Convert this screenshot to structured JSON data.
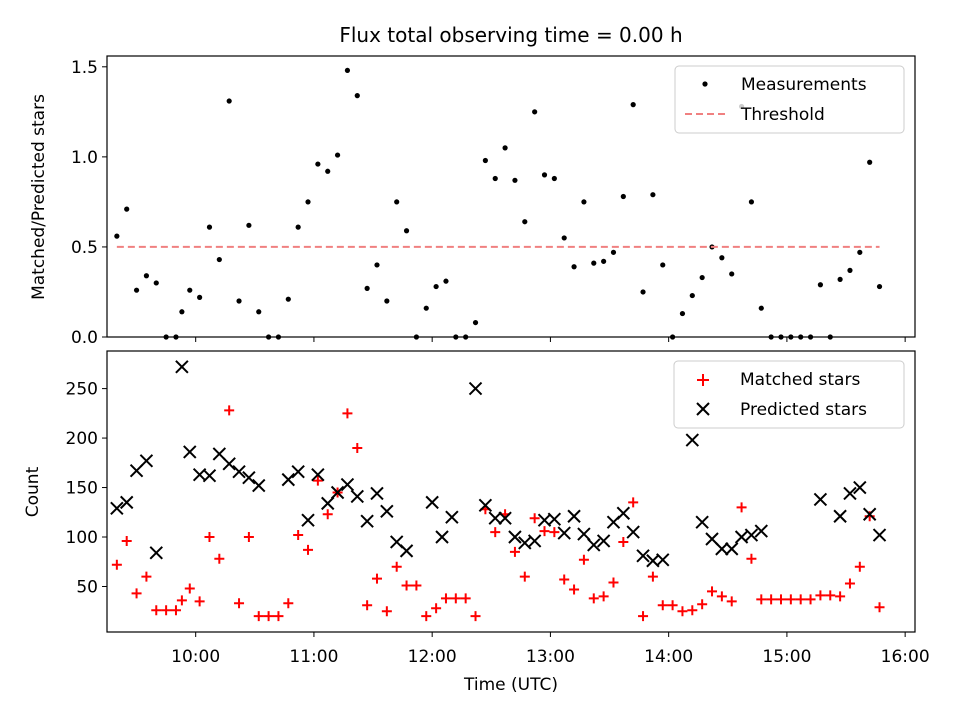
{
  "chart_data": {
    "title": "Flux total observing time = 0.00 h",
    "xlabel": "Time (UTC)",
    "x_ticks": [
      "10:00",
      "11:00",
      "12:00",
      "13:00",
      "14:00",
      "15:00",
      "16:00"
    ],
    "x_range": [
      "09:15",
      "16:05"
    ],
    "panels": [
      {
        "type": "scatter",
        "ylabel": "Matched/Predicted stars",
        "ylim": [
          0,
          1.56
        ],
        "yticks": [
          "0.0",
          "0.5",
          "1.0",
          "1.5"
        ],
        "legend_position": "top-right",
        "series": [
          {
            "name": "Measurements",
            "marker": "dot",
            "color": "#000000",
            "points": [
              [
                "09:20",
                0.56
              ],
              [
                "09:25",
                0.71
              ],
              [
                "09:30",
                0.26
              ],
              [
                "09:35",
                0.34
              ],
              [
                "09:40",
                0.3
              ],
              [
                "09:45",
                0.0
              ],
              [
                "09:50",
                0.0
              ],
              [
                "09:53",
                0.14
              ],
              [
                "09:57",
                0.26
              ],
              [
                "10:02",
                0.22
              ],
              [
                "10:07",
                0.61
              ],
              [
                "10:12",
                0.43
              ],
              [
                "10:17",
                1.31
              ],
              [
                "10:22",
                0.2
              ],
              [
                "10:27",
                0.62
              ],
              [
                "10:32",
                0.14
              ],
              [
                "10:37",
                0.0
              ],
              [
                "10:42",
                0.0
              ],
              [
                "10:47",
                0.21
              ],
              [
                "10:52",
                0.61
              ],
              [
                "10:57",
                0.75
              ],
              [
                "11:02",
                0.96
              ],
              [
                "11:07",
                0.92
              ],
              [
                "11:12",
                1.01
              ],
              [
                "11:17",
                1.48
              ],
              [
                "11:22",
                1.34
              ],
              [
                "11:27",
                0.27
              ],
              [
                "11:32",
                0.4
              ],
              [
                "11:37",
                0.2
              ],
              [
                "11:42",
                0.75
              ],
              [
                "11:47",
                0.59
              ],
              [
                "11:52",
                0.0
              ],
              [
                "11:57",
                0.16
              ],
              [
                "12:02",
                0.28
              ],
              [
                "12:07",
                0.31
              ],
              [
                "12:12",
                0.0
              ],
              [
                "12:17",
                0.0
              ],
              [
                "12:22",
                0.08
              ],
              [
                "12:27",
                0.98
              ],
              [
                "12:32",
                0.88
              ],
              [
                "12:37",
                1.05
              ],
              [
                "12:42",
                0.87
              ],
              [
                "12:47",
                0.64
              ],
              [
                "12:52",
                1.25
              ],
              [
                "12:57",
                0.9
              ],
              [
                "13:02",
                0.88
              ],
              [
                "13:07",
                0.55
              ],
              [
                "13:12",
                0.39
              ],
              [
                "13:17",
                0.75
              ],
              [
                "13:22",
                0.41
              ],
              [
                "13:27",
                0.42
              ],
              [
                "13:32",
                0.47
              ],
              [
                "13:37",
                0.78
              ],
              [
                "13:42",
                1.29
              ],
              [
                "13:47",
                0.25
              ],
              [
                "13:52",
                0.79
              ],
              [
                "13:57",
                0.4
              ],
              [
                "14:02",
                0.0
              ],
              [
                "14:07",
                0.13
              ],
              [
                "14:12",
                0.23
              ],
              [
                "14:17",
                0.33
              ],
              [
                "14:22",
                0.5
              ],
              [
                "14:27",
                0.44
              ],
              [
                "14:32",
                0.35
              ],
              [
                "14:37",
                1.28
              ],
              [
                "14:42",
                0.75
              ],
              [
                "14:47",
                0.16
              ],
              [
                "14:52",
                0.0
              ],
              [
                "14:57",
                0.0
              ],
              [
                "15:02",
                0.0
              ],
              [
                "15:07",
                0.0
              ],
              [
                "15:12",
                0.0
              ],
              [
                "15:17",
                0.29
              ],
              [
                "15:22",
                0.0
              ],
              [
                "15:27",
                0.32
              ],
              [
                "15:32",
                0.37
              ],
              [
                "15:37",
                0.47
              ],
              [
                "15:42",
                0.97
              ],
              [
                "15:47",
                0.28
              ]
            ]
          },
          {
            "name": "Threshold",
            "marker": "dashed-line",
            "color": "#f08080",
            "points": [
              [
                "09:20",
                0.5
              ],
              [
                "15:47",
                0.5
              ]
            ]
          }
        ]
      },
      {
        "type": "scatter",
        "ylabel": "Count",
        "ylim": [
          4,
          288
        ],
        "yticks": [
          "50",
          "100",
          "150",
          "200",
          "250"
        ],
        "legend_position": "top-right",
        "series": [
          {
            "name": "Matched stars",
            "marker": "plus",
            "color": "#ff0000",
            "points": [
              [
                "09:20",
                72
              ],
              [
                "09:25",
                96
              ],
              [
                "09:30",
                43
              ],
              [
                "09:35",
                60
              ],
              [
                "09:40",
                26
              ],
              [
                "09:45",
                26
              ],
              [
                "09:50",
                26
              ],
              [
                "09:53",
                36
              ],
              [
                "09:57",
                48
              ],
              [
                "10:02",
                35
              ],
              [
                "10:07",
                100
              ],
              [
                "10:12",
                78
              ],
              [
                "10:17",
                228
              ],
              [
                "10:22",
                33
              ],
              [
                "10:27",
                100
              ],
              [
                "10:32",
                20
              ],
              [
                "10:37",
                20
              ],
              [
                "10:42",
                20
              ],
              [
                "10:47",
                33
              ],
              [
                "10:52",
                102
              ],
              [
                "10:57",
                87
              ],
              [
                "11:02",
                157
              ],
              [
                "11:07",
                123
              ],
              [
                "11:12",
                145
              ],
              [
                "11:17",
                225
              ],
              [
                "11:22",
                190
              ],
              [
                "11:27",
                31
              ],
              [
                "11:32",
                58
              ],
              [
                "11:37",
                25
              ],
              [
                "11:42",
                70
              ],
              [
                "11:47",
                51
              ],
              [
                "11:52",
                51
              ],
              [
                "11:57",
                20
              ],
              [
                "12:02",
                28
              ],
              [
                "12:07",
                38
              ],
              [
                "12:12",
                38
              ],
              [
                "12:17",
                38
              ],
              [
                "12:22",
                20
              ],
              [
                "12:27",
                128
              ],
              [
                "12:32",
                105
              ],
              [
                "12:37",
                123
              ],
              [
                "12:42",
                85
              ],
              [
                "12:47",
                60
              ],
              [
                "12:52",
                119
              ],
              [
                "12:57",
                106
              ],
              [
                "13:02",
                105
              ],
              [
                "13:07",
                57
              ],
              [
                "13:12",
                47
              ],
              [
                "13:17",
                77
              ],
              [
                "13:22",
                38
              ],
              [
                "13:27",
                40
              ],
              [
                "13:32",
                54
              ],
              [
                "13:37",
                95
              ],
              [
                "13:42",
                135
              ],
              [
                "13:47",
                20
              ],
              [
                "13:52",
                60
              ],
              [
                "13:57",
                31
              ],
              [
                "14:02",
                31
              ],
              [
                "14:07",
                25
              ],
              [
                "14:12",
                26
              ],
              [
                "14:17",
                32
              ],
              [
                "14:22",
                45
              ],
              [
                "14:27",
                40
              ],
              [
                "14:32",
                35
              ],
              [
                "14:37",
                130
              ],
              [
                "14:42",
                78
              ],
              [
                "14:47",
                37
              ],
              [
                "14:52",
                37
              ],
              [
                "14:57",
                37
              ],
              [
                "15:02",
                37
              ],
              [
                "15:07",
                37
              ],
              [
                "15:12",
                37
              ],
              [
                "15:17",
                41
              ],
              [
                "15:22",
                41
              ],
              [
                "15:27",
                40
              ],
              [
                "15:32",
                53
              ],
              [
                "15:37",
                70
              ],
              [
                "15:42",
                121
              ],
              [
                "15:47",
                29
              ]
            ]
          },
          {
            "name": "Predicted stars",
            "marker": "x",
            "color": "#000000",
            "points": [
              [
                "09:20",
                129
              ],
              [
                "09:25",
                135
              ],
              [
                "09:30",
                167
              ],
              [
                "09:35",
                177
              ],
              [
                "09:40",
                84
              ],
              [
                "09:53",
                272
              ],
              [
                "09:57",
                186
              ],
              [
                "10:02",
                163
              ],
              [
                "10:07",
                162
              ],
              [
                "10:12",
                184
              ],
              [
                "10:17",
                174
              ],
              [
                "10:22",
                166
              ],
              [
                "10:27",
                160
              ],
              [
                "10:32",
                152
              ],
              [
                "10:47",
                158
              ],
              [
                "10:52",
                166
              ],
              [
                "10:57",
                117
              ],
              [
                "11:02",
                163
              ],
              [
                "11:07",
                134
              ],
              [
                "11:12",
                145
              ],
              [
                "11:17",
                153
              ],
              [
                "11:22",
                141
              ],
              [
                "11:27",
                116
              ],
              [
                "11:32",
                144
              ],
              [
                "11:37",
                126
              ],
              [
                "11:42",
                95
              ],
              [
                "11:47",
                86
              ],
              [
                "12:00",
                135
              ],
              [
                "12:05",
                100
              ],
              [
                "12:10",
                120
              ],
              [
                "12:22",
                250
              ],
              [
                "12:27",
                132
              ],
              [
                "12:32",
                119
              ],
              [
                "12:37",
                119
              ],
              [
                "12:42",
                100
              ],
              [
                "12:47",
                94
              ],
              [
                "12:52",
                96
              ],
              [
                "12:57",
                117
              ],
              [
                "13:02",
                118
              ],
              [
                "13:07",
                104
              ],
              [
                "13:12",
                121
              ],
              [
                "13:17",
                103
              ],
              [
                "13:22",
                92
              ],
              [
                "13:27",
                96
              ],
              [
                "13:32",
                115
              ],
              [
                "13:37",
                124
              ],
              [
                "13:42",
                105
              ],
              [
                "13:47",
                81
              ],
              [
                "13:52",
                76
              ],
              [
                "13:57",
                77
              ],
              [
                "14:12",
                198
              ],
              [
                "14:17",
                115
              ],
              [
                "14:22",
                98
              ],
              [
                "14:27",
                88
              ],
              [
                "14:32",
                88
              ],
              [
                "14:37",
                100
              ],
              [
                "14:42",
                102
              ],
              [
                "14:47",
                106
              ],
              [
                "15:17",
                138
              ],
              [
                "15:27",
                121
              ],
              [
                "15:32",
                144
              ],
              [
                "15:37",
                150
              ],
              [
                "15:42",
                123
              ],
              [
                "15:47",
                102
              ]
            ]
          }
        ]
      }
    ]
  }
}
